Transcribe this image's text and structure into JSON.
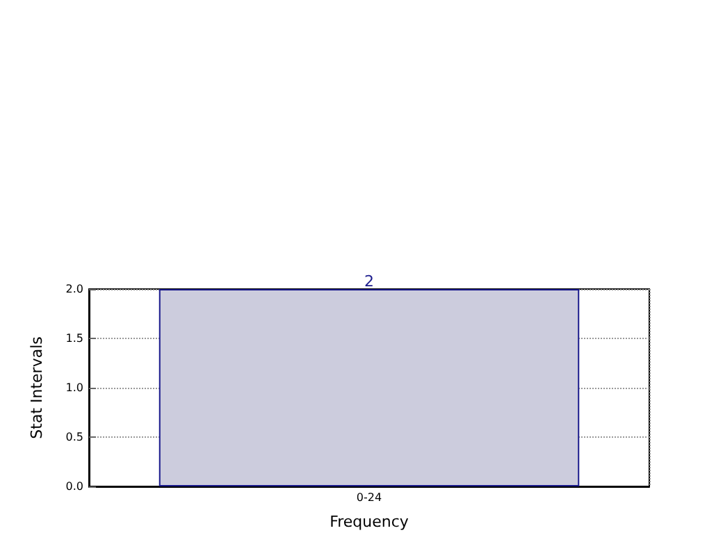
{
  "chart_data": {
    "type": "bar",
    "xlabel": "Frequency",
    "ylabel": "Stat Intervals",
    "categories": [
      "0-24"
    ],
    "values": [
      2
    ],
    "color": "#ccccdd",
    "data_labels": true,
    "ylim": [
      0,
      2
    ],
    "yticks": [
      {
        "value": 0,
        "label": "0.0"
      },
      {
        "value": 0.5,
        "label": "0.5"
      },
      {
        "value": 1,
        "label": "1.0"
      },
      {
        "value": 1.5,
        "label": "1.5"
      },
      {
        "value": 2,
        "label": "2.0"
      }
    ],
    "grid": true
  }
}
